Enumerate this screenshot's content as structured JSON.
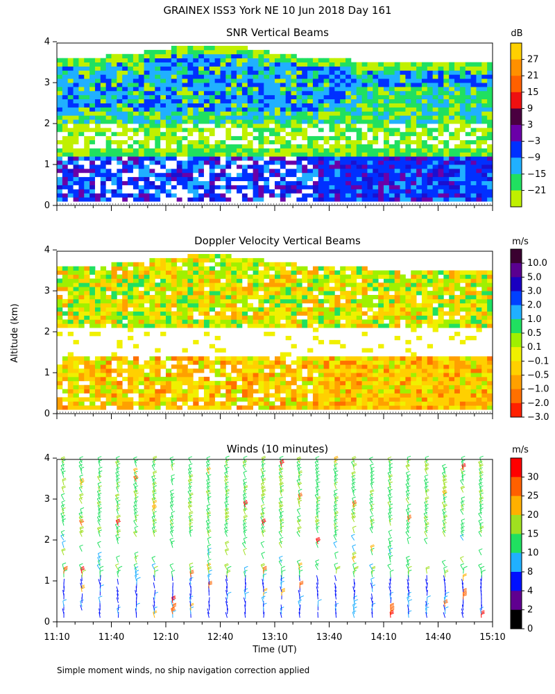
{
  "figure": {
    "title": "GRAINEX ISS3 York NE  10 Jun 2018 Day 161",
    "ylabel": "Altitude (km)",
    "xlabel": "Time (UT)",
    "footnote": "Simple moment winds, no ship navigation correction applied",
    "time_ticks": [
      "11:10",
      "11:40",
      "12:10",
      "12:40",
      "13:10",
      "13:40",
      "14:10",
      "14:40",
      "15:10"
    ],
    "altitude_ticks": [
      "0",
      "1",
      "2",
      "3",
      "4"
    ]
  },
  "chart_data": [
    {
      "type": "heatmap",
      "title": "SNR Vertical Beams",
      "units": "dB",
      "x_range": [
        "11:10",
        "15:10"
      ],
      "ylim": [
        0,
        4
      ],
      "colorbar": {
        "labels": [
          "27",
          "21",
          "15",
          "9",
          "3",
          "−3",
          "−9",
          "−15",
          "−21"
        ],
        "colors": [
          "#ffd000",
          "#ff9000",
          "#ff6000",
          "#ee1010",
          "#4a0040",
          "#6a00a8",
          "#0030ff",
          "#20b0ff",
          "#20e060",
          "#c0f000"
        ]
      },
      "regions": [
        {
          "altitude_km": "0.1-1.2",
          "snr": "-3 to 9 (strong, blue/purple)"
        },
        {
          "altitude_km": "1.2-2.0",
          "snr": "-21 to -15 (weak, yellow-green)"
        },
        {
          "altitude_km": "2.0-3.6",
          "snr": "-9 to -3 (moderate, cyan/blue)"
        }
      ]
    },
    {
      "type": "heatmap",
      "title": "Doppler Velocity Vertical Beams",
      "units": "m/s",
      "x_range": [
        "11:10",
        "15:10"
      ],
      "ylim": [
        0,
        4
      ],
      "colorbar": {
        "labels": [
          "10.0",
          "5.0",
          "3.0",
          "2.0",
          "1.0",
          "0.5",
          "0.1",
          "−0.1",
          "−0.5",
          "−1.0",
          "−2.0",
          "−3.0"
        ],
        "colors": [
          "#3a0030",
          "#5a0090",
          "#1a00c0",
          "#0040ff",
          "#20b0ff",
          "#20e060",
          "#a0f000",
          "#f0f000",
          "#ffd000",
          "#ffa000",
          "#ff7000",
          "#ff2000"
        ]
      },
      "regions": [
        {
          "altitude_km": "0.1-1.4",
          "velocity": "-1.0 to -0.1 (orange/yellow, mostly downward)"
        },
        {
          "altitude_km": "1.4-2.1",
          "velocity": "no data"
        },
        {
          "altitude_km": "2.1-3.8",
          "velocity": "-1.0 to 0.5 (mixed green/yellow/orange)"
        }
      ]
    },
    {
      "type": "scatter",
      "title": "Winds (10 minutes)",
      "units": "m/s",
      "x_range": [
        "11:10",
        "15:10"
      ],
      "ylim": [
        0,
        4
      ],
      "colorbar": {
        "labels": [
          "30",
          "25",
          "20",
          "15",
          "10",
          "8",
          "4",
          "2",
          "0"
        ],
        "colors": [
          "#ff0000",
          "#ff6000",
          "#ffb000",
          "#a0e020",
          "#20e060",
          "#20b0ff",
          "#0010ff",
          "#600090",
          "#000000"
        ]
      },
      "profiles_times": [
        "11:10",
        "11:20",
        "11:30",
        "11:40",
        "11:50",
        "12:00",
        "12:10",
        "12:20",
        "12:30",
        "12:40",
        "12:50",
        "13:00",
        "13:10",
        "13:20",
        "13:30",
        "13:40",
        "13:50",
        "14:00",
        "14:10",
        "14:20",
        "14:30",
        "14:40",
        "14:50",
        "15:00"
      ],
      "speed_by_altitude_km": [
        {
          "altitude_km": "0-1",
          "speed_ms": "4-8"
        },
        {
          "altitude_km": "1-2",
          "speed_ms": "8-20"
        },
        {
          "altitude_km": "2-4",
          "speed_ms": "10-20"
        }
      ]
    }
  ]
}
